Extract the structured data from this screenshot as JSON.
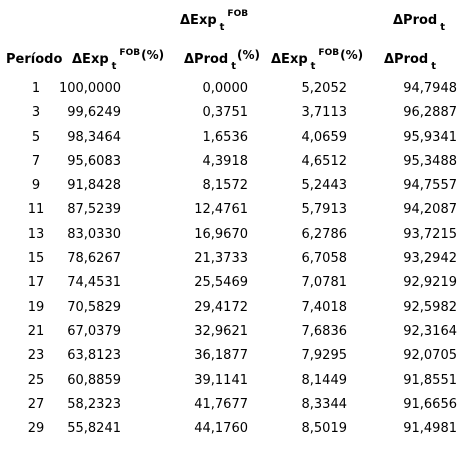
{
  "headers": {
    "top": {
      "exp_symbol": "ΔExp",
      "exp_sub": "t",
      "exp_sup": "FOB",
      "prod_symbol": "ΔProd",
      "prod_sub": "t"
    },
    "columns": {
      "period": "Período",
      "exp_symbol": "ΔExp",
      "exp_sub": "t",
      "exp_sup": "FOB",
      "pct": "(%)",
      "prod_symbol": "ΔProd",
      "prod_sub": "t"
    }
  },
  "rows": [
    [
      "1",
      "100,0000",
      "0,0000",
      "5,2052",
      "94,7948"
    ],
    [
      "3",
      "99,6249",
      "0,3751",
      "3,7113",
      "96,2887"
    ],
    [
      "5",
      "98,3464",
      "1,6536",
      "4,0659",
      "95,9341"
    ],
    [
      "7",
      "95,6083",
      "4,3918",
      "4,6512",
      "95,3488"
    ],
    [
      "9",
      "91,8428",
      "8,1572",
      "5,2443",
      "94,7557"
    ],
    [
      "11",
      "87,5239",
      "12,4761",
      "5,7913",
      "94,2087"
    ],
    [
      "13",
      "83,0330",
      "16,9670",
      "6,2786",
      "93,7215"
    ],
    [
      "15",
      "78,6267",
      "21,3733",
      "6,7058",
      "93,2942"
    ],
    [
      "17",
      "74,4531",
      "25,5469",
      "7,0781",
      "92,9219"
    ],
    [
      "19",
      "70,5829",
      "29,4172",
      "7,4018",
      "92,5982"
    ],
    [
      "21",
      "67,0379",
      "32,9621",
      "7,6836",
      "92,3164"
    ],
    [
      "23",
      "63,8123",
      "36,1877",
      "7,9295",
      "92,0705"
    ],
    [
      "25",
      "60,8859",
      "39,1141",
      "8,1449",
      "91,8551"
    ],
    [
      "27",
      "58,2323",
      "41,7677",
      "8,3344",
      "91,6656"
    ],
    [
      "29",
      "55,8241",
      "44,1760",
      "8,5019",
      "91,4981"
    ]
  ]
}
